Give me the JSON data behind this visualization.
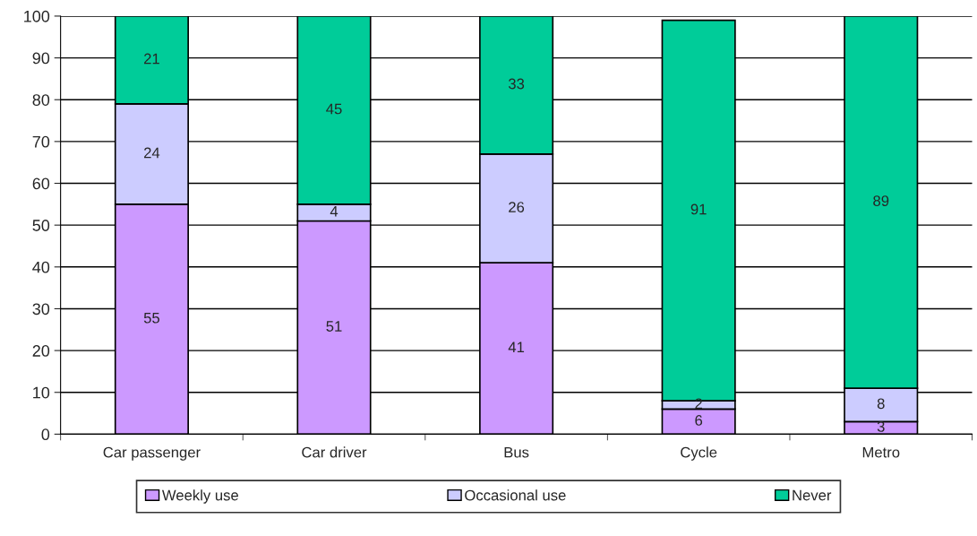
{
  "chart_data": {
    "type": "bar",
    "stacked": true,
    "categories": [
      "Car passenger",
      "Car driver",
      "Bus",
      "Cycle",
      "Metro"
    ],
    "series": [
      {
        "name": "Weekly use",
        "color": "#cc99ff",
        "values": [
          55,
          51,
          41,
          6,
          3
        ]
      },
      {
        "name": "Occasional use",
        "color": "#ccccff",
        "values": [
          24,
          4,
          26,
          2,
          8
        ]
      },
      {
        "name": "Never",
        "color": "#00cc99",
        "values": [
          21,
          45,
          33,
          91,
          89
        ]
      }
    ],
    "ylim": [
      0,
      100
    ],
    "yticks": [
      0,
      10,
      20,
      30,
      40,
      50,
      60,
      70,
      80,
      90,
      100
    ],
    "grid": "y",
    "legend": "bottom",
    "data_labels": true
  }
}
